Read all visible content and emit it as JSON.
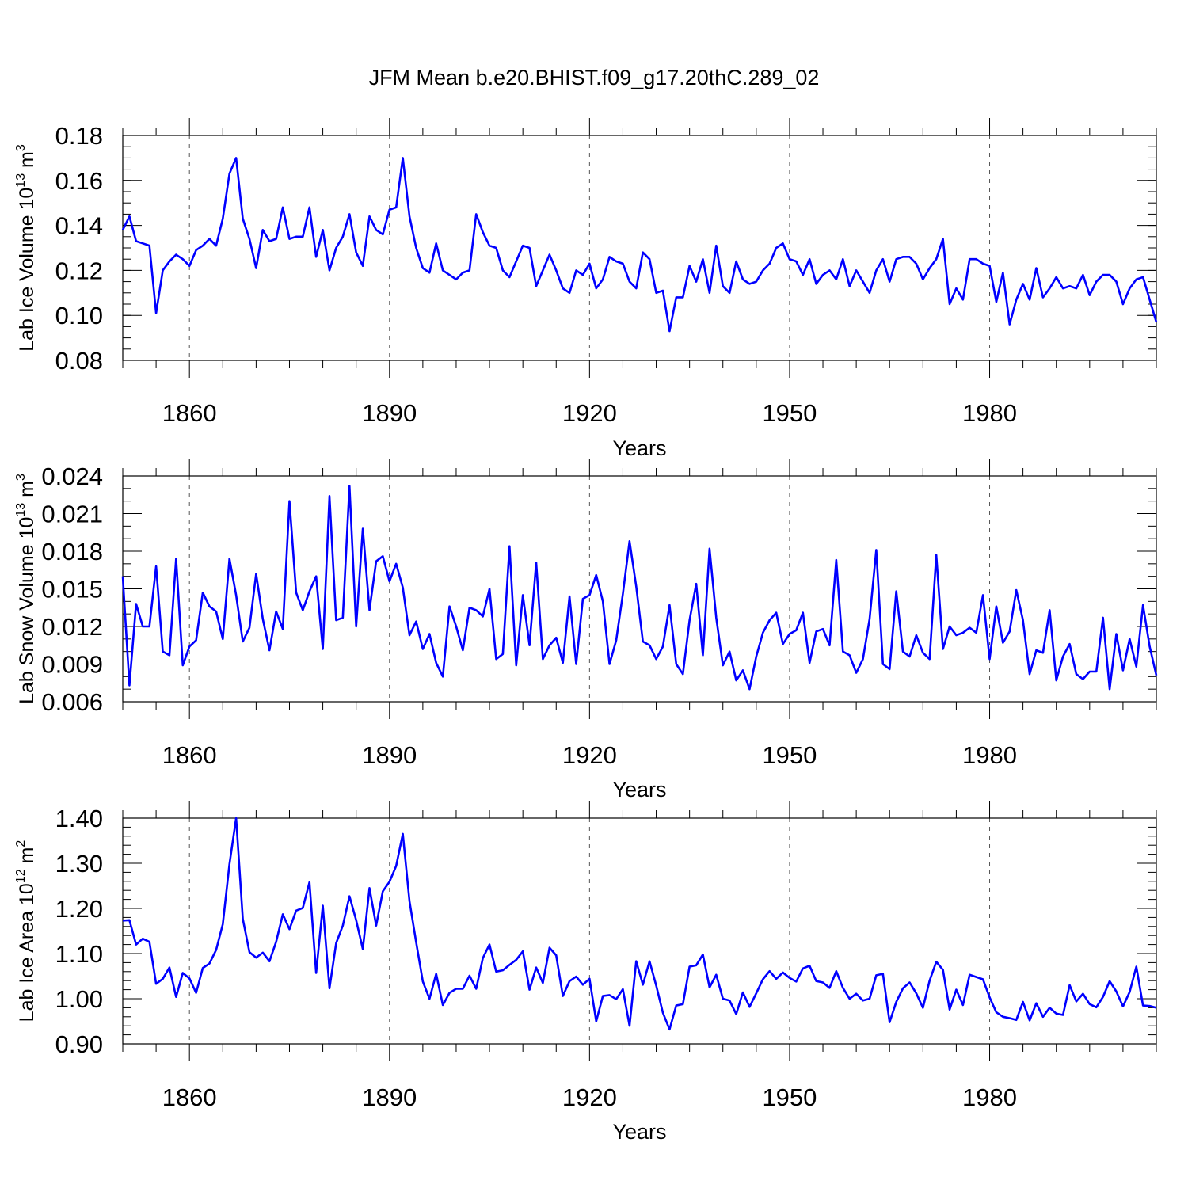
{
  "title": "JFM Mean b.e20.BHIST.f09_g17.20thC.289_02",
  "line_color": "#0000ff",
  "chart_data": [
    {
      "type": "line",
      "ylabel": "Lab Ice Volume 10",
      "ylabel_exp": "13",
      "ylabel_unit": " m",
      "ylabel_unit_exp": "3",
      "xlabel": "Years",
      "xlim": [
        1850,
        2005
      ],
      "ylim": [
        0.08,
        0.18
      ],
      "x_ticks": [
        1860,
        1890,
        1920,
        1950,
        1980
      ],
      "x_tick_labels": [
        "1860",
        "1890",
        "1920",
        "1950",
        "1980"
      ],
      "y_ticks": [
        0.08,
        0.1,
        0.12,
        0.14,
        0.16,
        0.18
      ],
      "y_tick_labels": [
        "0.08",
        "0.10",
        "0.12",
        "0.14",
        "0.16",
        "0.18"
      ],
      "y_minor_step": 0.005,
      "series": [
        {
          "name": "Lab Ice Volume",
          "x_start": 1850,
          "values": [
            0.138,
            0.144,
            0.133,
            0.132,
            0.131,
            0.101,
            0.12,
            0.124,
            0.127,
            0.125,
            0.122,
            0.129,
            0.131,
            0.134,
            0.131,
            0.143,
            0.163,
            0.17,
            0.143,
            0.134,
            0.121,
            0.138,
            0.133,
            0.134,
            0.148,
            0.134,
            0.135,
            0.135,
            0.148,
            0.126,
            0.138,
            0.12,
            0.13,
            0.135,
            0.145,
            0.128,
            0.122,
            0.144,
            0.138,
            0.136,
            0.147,
            0.148,
            0.17,
            0.144,
            0.13,
            0.121,
            0.119,
            0.132,
            0.12,
            0.118,
            0.116,
            0.119,
            0.12,
            0.145,
            0.137,
            0.131,
            0.13,
            0.12,
            0.117,
            0.124,
            0.131,
            0.13,
            0.113,
            0.12,
            0.127,
            0.12,
            0.112,
            0.11,
            0.12,
            0.118,
            0.123,
            0.112,
            0.116,
            0.126,
            0.124,
            0.123,
            0.115,
            0.112,
            0.128,
            0.125,
            0.11,
            0.111,
            0.093,
            0.108,
            0.108,
            0.122,
            0.115,
            0.125,
            0.11,
            0.131,
            0.113,
            0.11,
            0.124,
            0.116,
            0.114,
            0.115,
            0.12,
            0.123,
            0.13,
            0.132,
            0.125,
            0.124,
            0.118,
            0.125,
            0.114,
            0.118,
            0.12,
            0.116,
            0.125,
            0.113,
            0.12,
            0.115,
            0.11,
            0.12,
            0.125,
            0.115,
            0.125,
            0.126,
            0.126,
            0.123,
            0.116,
            0.121,
            0.125,
            0.134,
            0.105,
            0.112,
            0.107,
            0.125,
            0.125,
            0.123,
            0.122,
            0.106,
            0.119,
            0.096,
            0.107,
            0.114,
            0.107,
            0.121,
            0.108,
            0.112,
            0.117,
            0.112,
            0.113,
            0.112,
            0.118,
            0.109,
            0.115,
            0.118,
            0.118,
            0.115,
            0.105,
            0.112,
            0.116,
            0.117,
            0.107,
            0.097
          ]
        }
      ]
    },
    {
      "type": "line",
      "ylabel": "Lab Snow Volume 10",
      "ylabel_exp": "13",
      "ylabel_unit": " m",
      "ylabel_unit_exp": "3",
      "xlabel": "Years",
      "xlim": [
        1850,
        2005
      ],
      "ylim": [
        0.006,
        0.024
      ],
      "x_ticks": [
        1860,
        1890,
        1920,
        1950,
        1980
      ],
      "x_tick_labels": [
        "1860",
        "1890",
        "1920",
        "1950",
        "1980"
      ],
      "y_ticks": [
        0.006,
        0.009,
        0.012,
        0.015,
        0.018,
        0.021,
        0.024
      ],
      "y_tick_labels": [
        "0.006",
        "0.009",
        "0.012",
        "0.015",
        "0.018",
        "0.021",
        "0.024"
      ],
      "y_minor_step": 0.001,
      "series": [
        {
          "name": "Lab Snow Volume",
          "x_start": 1850,
          "values": [
            0.016,
            0.0073,
            0.0138,
            0.012,
            0.012,
            0.0168,
            0.01,
            0.0097,
            0.0174,
            0.0089,
            0.0104,
            0.0109,
            0.0147,
            0.0136,
            0.0132,
            0.011,
            0.0174,
            0.0145,
            0.0108,
            0.0119,
            0.0162,
            0.0126,
            0.0101,
            0.0132,
            0.0118,
            0.022,
            0.0147,
            0.0133,
            0.0148,
            0.016,
            0.0102,
            0.0224,
            0.0125,
            0.0127,
            0.0232,
            0.012,
            0.0198,
            0.0133,
            0.0172,
            0.0176,
            0.0156,
            0.017,
            0.0151,
            0.0113,
            0.0124,
            0.0102,
            0.0114,
            0.0091,
            0.008,
            0.0136,
            0.012,
            0.0101,
            0.0135,
            0.0133,
            0.0128,
            0.015,
            0.0094,
            0.0098,
            0.0184,
            0.0089,
            0.0145,
            0.0105,
            0.0171,
            0.0094,
            0.0105,
            0.0111,
            0.0091,
            0.0144,
            0.009,
            0.0142,
            0.0145,
            0.0161,
            0.014,
            0.009,
            0.0109,
            0.0146,
            0.0188,
            0.0152,
            0.0108,
            0.0105,
            0.0094,
            0.0104,
            0.0137,
            0.009,
            0.0082,
            0.0125,
            0.0154,
            0.0097,
            0.0182,
            0.0127,
            0.0089,
            0.01,
            0.0077,
            0.0085,
            0.007,
            0.0096,
            0.0115,
            0.0125,
            0.0131,
            0.0106,
            0.0114,
            0.0117,
            0.0131,
            0.0091,
            0.0116,
            0.0118,
            0.0105,
            0.0173,
            0.01,
            0.0097,
            0.0083,
            0.0094,
            0.0126,
            0.0181,
            0.009,
            0.0086,
            0.0148,
            0.01,
            0.0096,
            0.0113,
            0.0099,
            0.0094,
            0.0177,
            0.0102,
            0.012,
            0.0113,
            0.0115,
            0.0119,
            0.0115,
            0.0145,
            0.0094,
            0.0136,
            0.0107,
            0.0116,
            0.0149,
            0.0125,
            0.0082,
            0.0101,
            0.0099,
            0.0133,
            0.0077,
            0.0096,
            0.0106,
            0.0082,
            0.0078,
            0.0084,
            0.0084,
            0.0127,
            0.007,
            0.0114,
            0.0085,
            0.011,
            0.0088,
            0.0137,
            0.0104,
            0.0081
          ]
        }
      ]
    },
    {
      "type": "line",
      "ylabel": "Lab Ice Area 10",
      "ylabel_exp": "12",
      "ylabel_unit": " m",
      "ylabel_unit_exp": "2",
      "xlabel": "Years",
      "xlim": [
        1850,
        2005
      ],
      "ylim": [
        0.9,
        1.4
      ],
      "x_ticks": [
        1860,
        1890,
        1920,
        1950,
        1980
      ],
      "x_tick_labels": [
        "1860",
        "1890",
        "1920",
        "1950",
        "1980"
      ],
      "y_ticks": [
        0.9,
        1.0,
        1.1,
        1.2,
        1.3,
        1.4
      ],
      "y_tick_labels": [
        "0.90",
        "1.00",
        "1.10",
        "1.20",
        "1.30",
        "1.40"
      ],
      "y_minor_step": 0.02,
      "series": [
        {
          "name": "Lab Ice Area",
          "x_start": 1850,
          "values": [
            1.173,
            1.174,
            1.12,
            1.133,
            1.126,
            1.033,
            1.044,
            1.069,
            1.004,
            1.057,
            1.045,
            1.013,
            1.068,
            1.078,
            1.108,
            1.165,
            1.298,
            1.4,
            1.177,
            1.103,
            1.091,
            1.102,
            1.083,
            1.126,
            1.187,
            1.154,
            1.195,
            1.201,
            1.258,
            1.057,
            1.206,
            1.023,
            1.123,
            1.162,
            1.227,
            1.174,
            1.11,
            1.245,
            1.162,
            1.238,
            1.259,
            1.294,
            1.365,
            1.216,
            1.125,
            1.038,
            1.0,
            1.055,
            0.986,
            1.013,
            1.022,
            1.022,
            1.051,
            1.022,
            1.09,
            1.12,
            1.06,
            1.063,
            1.075,
            1.086,
            1.105,
            1.02,
            1.069,
            1.035,
            1.113,
            1.096,
            1.006,
            1.039,
            1.049,
            1.031,
            1.044,
            0.95,
            1.006,
            1.008,
            0.999,
            1.021,
            0.94,
            1.083,
            1.031,
            1.083,
            1.029,
            0.969,
            0.932,
            0.985,
            0.988,
            1.071,
            1.074,
            1.098,
            1.025,
            1.053,
            1.0,
            0.996,
            0.966,
            1.014,
            0.982,
            1.012,
            1.043,
            1.061,
            1.044,
            1.058,
            1.046,
            1.038,
            1.067,
            1.073,
            1.039,
            1.036,
            1.024,
            1.061,
            1.024,
            1.0,
            1.011,
            0.996,
            1.0,
            1.052,
            1.055,
            0.948,
            0.993,
            1.023,
            1.036,
            1.012,
            0.98,
            1.04,
            1.082,
            1.064,
            0.976,
            1.02,
            0.986,
            1.053,
            1.048,
            1.043,
            1.003,
            0.97,
            0.96,
            0.957,
            0.953,
            0.993,
            0.952,
            0.99,
            0.96,
            0.98,
            0.967,
            0.964,
            1.03,
            0.994,
            1.011,
            0.988,
            0.981,
            1.004,
            1.039,
            1.016,
            0.983,
            1.015,
            1.071,
            0.985,
            0.984,
            0.98
          ]
        }
      ]
    }
  ]
}
